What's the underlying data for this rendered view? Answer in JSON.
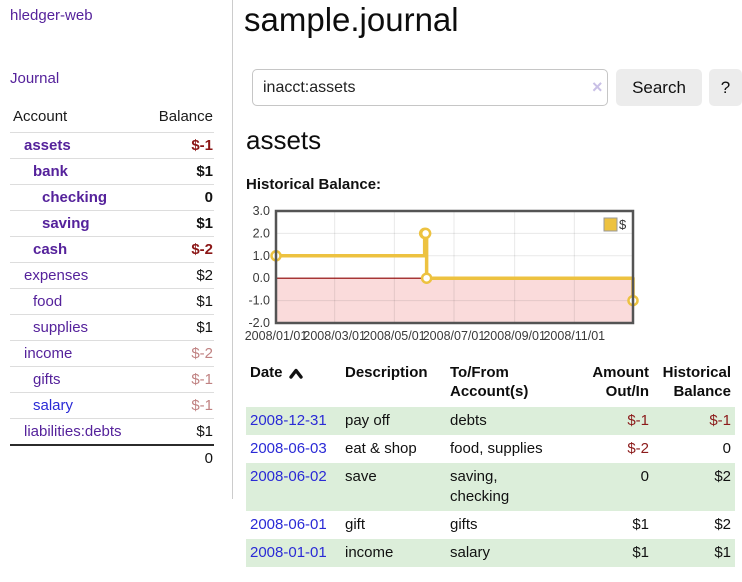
{
  "app": {
    "brand": "hledger-web",
    "nav": {
      "journal": "Journal"
    }
  },
  "sidebar": {
    "header": {
      "account": "Account",
      "balance": "Balance"
    },
    "accounts": [
      {
        "name": "assets",
        "depth": 1,
        "balance": "$-1",
        "bold": true,
        "balance_style": "neg-strong"
      },
      {
        "name": "bank",
        "depth": 2,
        "balance": "$1",
        "bold": true,
        "balance_style": ""
      },
      {
        "name": "checking",
        "depth": 3,
        "balance": "0",
        "bold": true,
        "balance_style": ""
      },
      {
        "name": "saving",
        "depth": 3,
        "balance": "$1",
        "bold": true,
        "balance_style": ""
      },
      {
        "name": "cash",
        "depth": 2,
        "balance": "$-2",
        "bold": true,
        "balance_style": "neg-strong"
      },
      {
        "name": "expenses",
        "depth": 1,
        "balance": "$2",
        "bold": false,
        "balance_style": ""
      },
      {
        "name": "food",
        "depth": 2,
        "balance": "$1",
        "bold": false,
        "balance_style": ""
      },
      {
        "name": "supplies",
        "depth": 2,
        "balance": "$1",
        "bold": false,
        "balance_style": ""
      },
      {
        "name": "income",
        "depth": 1,
        "balance": "$-2",
        "bold": false,
        "balance_style": "neg-soft"
      },
      {
        "name": "gifts",
        "depth": 2,
        "balance": "$-1",
        "bold": false,
        "balance_style": "neg-soft"
      },
      {
        "name": "salary",
        "depth": 2,
        "balance": "$-1",
        "bold": false,
        "balance_style": "neg-soft",
        "unvisited": true
      },
      {
        "name": "liabilities:debts",
        "depth": 1,
        "balance": "$1",
        "bold": false,
        "balance_style": ""
      }
    ],
    "total": "0"
  },
  "main": {
    "title": "sample.journal",
    "search": {
      "value": "inacct:assets",
      "clear": "×",
      "submit": "Search",
      "help": "?"
    },
    "account_heading": "assets",
    "chart_title": "Historical Balance:"
  },
  "chart_data": {
    "type": "line",
    "step": true,
    "title": "Historical Balance:",
    "x_start": "2008-01-01",
    "x_end": "2008-12-31",
    "series": [
      {
        "name": "$",
        "color": "#EDC240",
        "points": [
          [
            "2008-01-01",
            1
          ],
          [
            "2008-06-01",
            2
          ],
          [
            "2008-06-02",
            2
          ],
          [
            "2008-06-03",
            0
          ],
          [
            "2008-12-31",
            -1
          ]
        ]
      }
    ],
    "ylim": [
      -2,
      3
    ],
    "yticks": [
      "3.0",
      "2.0",
      "1.0",
      "0.0",
      "-1.0",
      "-2.0"
    ],
    "xticks": [
      [
        "2008-01-01",
        "2008/01/01"
      ],
      [
        "2008-03-01",
        "2008/03/01"
      ],
      [
        "2008-05-01",
        "2008/05/01"
      ],
      [
        "2008-07-01",
        "2008/07/01"
      ],
      [
        "2008-09-01",
        "2008/09/01"
      ],
      [
        "2008-11-01",
        "2008/11/01"
      ]
    ],
    "grid": true,
    "legend_position": "top-right",
    "negative_fill": "#fadbdb",
    "zero_line": "#8b0000",
    "border": "#545454",
    "grid_color": "rgba(0,0,0,0.09)"
  },
  "register": {
    "headers": {
      "date": "Date",
      "description": "Description",
      "tofrom1": "To/From",
      "tofrom2": "Account(s)",
      "amount1": "Amount",
      "amount2": "Out/In",
      "hist1": "Historical",
      "hist2": "Balance"
    },
    "rows": [
      {
        "date": "2008-12-31",
        "description": "pay off",
        "accounts": "debts",
        "amount": "$-1",
        "balance": "$-1"
      },
      {
        "date": "2008-06-03",
        "description": "eat & shop",
        "accounts": "food, supplies",
        "amount": "$-2",
        "balance": "0"
      },
      {
        "date": "2008-06-02",
        "description": "save",
        "accounts": "saving,\nchecking",
        "amount": "0",
        "balance": "$2"
      },
      {
        "date": "2008-06-01",
        "description": "gift",
        "accounts": "gifts",
        "amount": "$1",
        "balance": "$2"
      },
      {
        "date": "2008-01-01",
        "description": "income",
        "accounts": "salary",
        "amount": "$1",
        "balance": "$1"
      }
    ]
  }
}
